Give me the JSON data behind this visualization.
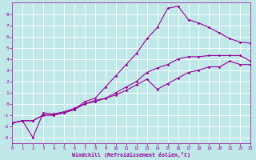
{
  "title": "",
  "xlabel": "Windchill (Refroidissement éolien,°C)",
  "background_color": "#c0e8e8",
  "line_color": "#990099",
  "grid_color": "#ffffff",
  "xlim": [
    0,
    23
  ],
  "ylim": [
    -3.5,
    9
  ],
  "xticks": [
    0,
    1,
    2,
    3,
    4,
    5,
    6,
    7,
    8,
    9,
    10,
    11,
    12,
    13,
    14,
    15,
    16,
    17,
    18,
    19,
    20,
    21,
    22,
    23
  ],
  "yticks": [
    -3,
    -2,
    -1,
    0,
    1,
    2,
    3,
    4,
    5,
    6,
    7,
    8
  ],
  "curve1_x": [
    0,
    1,
    2,
    3,
    4,
    5,
    6,
    7,
    8,
    9,
    10,
    11,
    12,
    13,
    14,
    15,
    16,
    17,
    18,
    19,
    20,
    21,
    22,
    23
  ],
  "curve1_y": [
    -1.7,
    -1.5,
    -1.5,
    -1.0,
    -1.0,
    -0.8,
    -0.5,
    0.2,
    0.5,
    1.5,
    2.5,
    3.5,
    4.5,
    5.8,
    6.8,
    8.5,
    8.7,
    7.5,
    7.2,
    6.8,
    6.3,
    5.8,
    5.5,
    5.4
  ],
  "curve2_x": [
    0,
    1,
    2,
    3,
    4,
    5,
    6,
    7,
    8,
    9,
    10,
    11,
    12,
    13,
    14,
    15,
    16,
    17,
    18,
    19,
    20,
    21,
    22,
    23
  ],
  "curve2_y": [
    -1.7,
    -1.5,
    -1.5,
    -1.0,
    -1.0,
    -0.8,
    -0.5,
    0.0,
    0.3,
    0.5,
    1.0,
    1.5,
    2.0,
    2.8,
    3.2,
    3.5,
    4.0,
    4.2,
    4.2,
    4.3,
    4.3,
    4.3,
    4.3,
    3.8
  ],
  "curve3_x": [
    0,
    1,
    2,
    3,
    4,
    5,
    6,
    7,
    8,
    9,
    10,
    11,
    12,
    13,
    14,
    15,
    16,
    17,
    18,
    19,
    20,
    21,
    22,
    23
  ],
  "curve3_y": [
    -1.7,
    -1.5,
    -3.0,
    -0.8,
    -0.9,
    -0.7,
    -0.4,
    0.0,
    0.2,
    0.5,
    0.8,
    1.2,
    1.7,
    2.2,
    1.3,
    1.8,
    2.3,
    2.8,
    3.0,
    3.3,
    3.3,
    3.8,
    3.5,
    3.5
  ]
}
